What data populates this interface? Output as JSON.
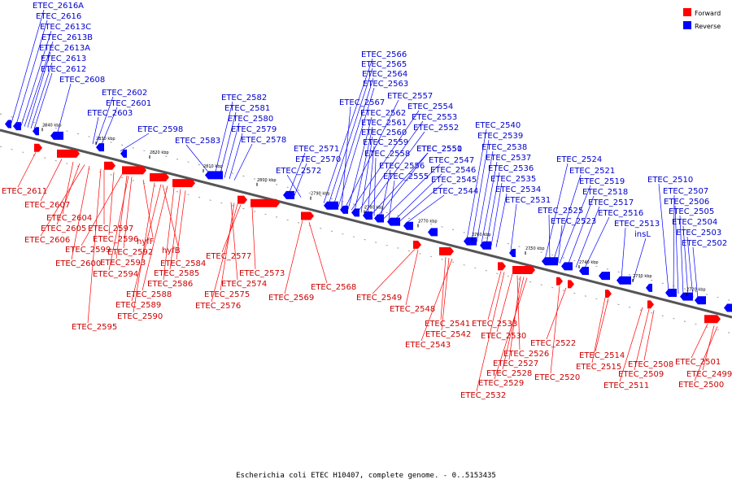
{
  "colors": {
    "forward": "#ff0000",
    "reverse": "#0000ff",
    "forward_label": "#cc0000",
    "reverse_label": "#0000cc",
    "backbone": "#555555"
  },
  "legend": {
    "forward": "Forward",
    "reverse": "Reverse"
  },
  "caption": "Escherichia coli ETEC H10407, complete genome. - 0..5153435",
  "tick_labels": [
    "2840 kbp",
    "2830 kbp",
    "2820 kbp",
    "2810 kbp",
    "2800 kbp",
    "2790 kbp",
    "2780 kbp",
    "2770 kbp",
    "2760 kbp",
    "2750 kbp",
    "2740 kbp",
    "2730 kbp",
    "2720 kbp"
  ],
  "reverse_genes": [
    "ETEC_2616A",
    "ETEC_2616",
    "ETEC_2613C",
    "ETEC_2613B",
    "ETEC_2613A",
    "ETEC_2613",
    "ETEC_2612",
    "ETEC_2608",
    "ETEC_2602",
    "ETEC_2601",
    "ETEC_2603",
    "ETEC_2598",
    "ETEC_2583",
    "ETEC_2582",
    "ETEC_2581",
    "ETEC_2580",
    "ETEC_2579",
    "ETEC_2578",
    "ETEC_2571",
    "ETEC_2570",
    "ETEC_2572",
    "ETEC_2566",
    "ETEC_2565",
    "ETEC_2564",
    "ETEC_2563",
    "ETEC_2567",
    "ETEC_2557",
    "ETEC_2562",
    "ETEC_2554",
    "ETEC_2561",
    "ETEC_2553",
    "ETEC_2560",
    "ETEC_2552",
    "ETEC_2559",
    "ETEC_2551",
    "ETEC_2558",
    "ETEC_2550",
    "ETEC_2556",
    "ETEC_2547",
    "ETEC_2555",
    "ETEC_2546",
    "ETEC_2545",
    "ETEC_2544",
    "ETEC_2540",
    "ETEC_2539",
    "ETEC_2538",
    "ETEC_2537",
    "ETEC_2536",
    "ETEC_2535",
    "ETEC_2534",
    "ETEC_2531",
    "ETEC_2524",
    "ETEC_2521",
    "ETEC_2519",
    "ETEC_2518",
    "ETEC_2517",
    "ETEC_2525",
    "ETEC_2516",
    "ETEC_2523",
    "ETEC_2513",
    "insL",
    "ETEC_2510",
    "ETEC_2507",
    "ETEC_2506",
    "ETEC_2505",
    "ETEC_2504",
    "ETEC_2503",
    "ETEC_2502"
  ],
  "forward_genes": [
    "ETEC_2611",
    "ETEC_2607",
    "ETEC_2604",
    "ETEC_2605",
    "ETEC_2606",
    "ETEC_2597",
    "ETEC_2596",
    "ETEC_2599",
    "hyfF",
    "ETEC_2592",
    "ETEC_2593",
    "ETEC_2600",
    "ETEC_2594",
    "hyfB",
    "ETEC_2584",
    "ETEC_2585",
    "ETEC_2586",
    "ETEC_2588",
    "ETEC_2589",
    "ETEC_2590",
    "ETEC_2595",
    "ETEC_2577",
    "ETEC_2574",
    "ETEC_2575",
    "ETEC_2576",
    "ETEC_2573",
    "ETEC_2569",
    "ETEC_2568",
    "ETEC_2549",
    "ETEC_2548",
    "ETEC_2541",
    "ETEC_2542",
    "ETEC_2543",
    "ETEC_2533",
    "ETEC_2530",
    "ETEC_2526",
    "ETEC_2527",
    "ETEC_2528",
    "ETEC_2529",
    "ETEC_2532",
    "ETEC_2522",
    "ETEC_2520",
    "ETEC_2514",
    "ETEC_2515",
    "ETEC_2508",
    "ETEC_2509",
    "ETEC_2511",
    "ETEC_2501",
    "ETEC_2499",
    "ETEC_2500"
  ]
}
